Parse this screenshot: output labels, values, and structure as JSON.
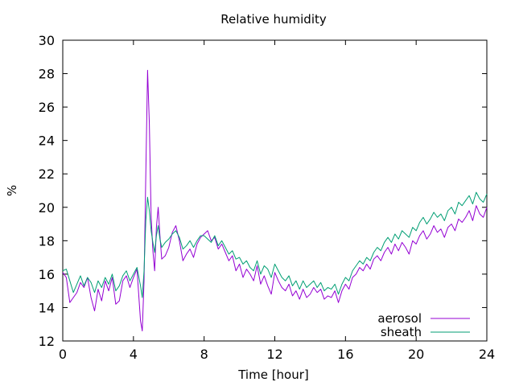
{
  "chart_data": {
    "type": "line",
    "title": "Relative humidity",
    "xlabel": "Time [hour]",
    "ylabel": "%",
    "xlim": [
      0,
      24
    ],
    "ylim": [
      12,
      30
    ],
    "xticks": [
      0,
      4,
      8,
      12,
      16,
      20,
      24
    ],
    "yticks": [
      12,
      14,
      16,
      18,
      20,
      22,
      24,
      26,
      28,
      30
    ],
    "grid": false,
    "legend_position": "bottom-right",
    "series": [
      {
        "name": "aerosol",
        "color": "#9400d3",
        "x": [
          0,
          0.2,
          0.4,
          0.6,
          0.8,
          1.0,
          1.2,
          1.4,
          1.6,
          1.8,
          2.0,
          2.2,
          2.4,
          2.6,
          2.8,
          3.0,
          3.2,
          3.4,
          3.6,
          3.8,
          4.0,
          4.2,
          4.4,
          4.5,
          4.6,
          4.7,
          4.8,
          4.9,
          5.0,
          5.1,
          5.2,
          5.3,
          5.4,
          5.5,
          5.6,
          5.8,
          6.0,
          6.2,
          6.4,
          6.6,
          6.8,
          7.0,
          7.2,
          7.4,
          7.6,
          7.8,
          8.0,
          8.2,
          8.4,
          8.6,
          8.8,
          9.0,
          9.2,
          9.4,
          9.6,
          9.8,
          10.0,
          10.2,
          10.4,
          10.6,
          10.8,
          11.0,
          11.2,
          11.4,
          11.6,
          11.8,
          12.0,
          12.2,
          12.4,
          12.6,
          12.8,
          13.0,
          13.2,
          13.4,
          13.6,
          13.8,
          14.0,
          14.2,
          14.4,
          14.6,
          14.8,
          15.0,
          15.2,
          15.4,
          15.6,
          15.8,
          16.0,
          16.2,
          16.4,
          16.6,
          16.8,
          17.0,
          17.2,
          17.4,
          17.6,
          17.8,
          18.0,
          18.2,
          18.4,
          18.6,
          18.8,
          19.0,
          19.2,
          19.4,
          19.6,
          19.8,
          20.0,
          20.2,
          20.4,
          20.6,
          20.8,
          21.0,
          21.2,
          21.4,
          21.6,
          21.8,
          22.0,
          22.2,
          22.4,
          22.6,
          22.8,
          23.0,
          23.2,
          23.4,
          23.6,
          23.8,
          24.0
        ],
        "y": [
          16.1,
          15.8,
          14.3,
          14.6,
          14.9,
          15.5,
          15.2,
          15.8,
          14.6,
          13.8,
          15.1,
          14.4,
          15.6,
          15.0,
          15.8,
          14.2,
          14.4,
          15.6,
          15.9,
          15.2,
          15.8,
          16.3,
          13.2,
          12.6,
          15.6,
          22.0,
          28.2,
          25.0,
          19.5,
          17.4,
          16.2,
          18.8,
          20.0,
          18.3,
          16.9,
          17.1,
          17.6,
          18.5,
          18.9,
          18.0,
          16.8,
          17.2,
          17.5,
          17.0,
          17.8,
          18.2,
          18.4,
          18.6,
          18.0,
          18.2,
          17.5,
          17.8,
          17.3,
          16.8,
          17.1,
          16.2,
          16.6,
          15.8,
          16.3,
          16.0,
          15.6,
          16.5,
          15.4,
          15.9,
          15.3,
          14.8,
          16.1,
          15.6,
          15.2,
          15.0,
          15.4,
          14.7,
          15.0,
          14.5,
          15.1,
          14.6,
          14.8,
          15.2,
          14.9,
          15.1,
          14.5,
          14.7,
          14.6,
          15.0,
          14.3,
          15.0,
          15.4,
          15.1,
          15.8,
          16.0,
          16.4,
          16.2,
          16.6,
          16.3,
          16.9,
          17.1,
          16.8,
          17.3,
          17.6,
          17.2,
          17.8,
          17.4,
          17.9,
          17.6,
          17.2,
          18.0,
          17.8,
          18.3,
          18.6,
          18.1,
          18.4,
          18.9,
          18.5,
          18.7,
          18.2,
          18.8,
          19.0,
          18.6,
          19.3,
          19.1,
          19.4,
          19.8,
          19.2,
          20.1,
          19.6,
          19.4,
          20.0
        ],
        "values_note": ""
      },
      {
        "name": "sheath",
        "color": "#009e73",
        "x": [
          0,
          0.2,
          0.4,
          0.6,
          0.8,
          1.0,
          1.2,
          1.4,
          1.6,
          1.8,
          2.0,
          2.2,
          2.4,
          2.6,
          2.8,
          3.0,
          3.2,
          3.4,
          3.6,
          3.8,
          4.0,
          4.2,
          4.4,
          4.5,
          4.6,
          4.7,
          4.8,
          4.9,
          5.0,
          5.1,
          5.2,
          5.3,
          5.4,
          5.5,
          5.6,
          5.8,
          6.0,
          6.2,
          6.4,
          6.6,
          6.8,
          7.0,
          7.2,
          7.4,
          7.6,
          7.8,
          8.0,
          8.2,
          8.4,
          8.6,
          8.8,
          9.0,
          9.2,
          9.4,
          9.6,
          9.8,
          10.0,
          10.2,
          10.4,
          10.6,
          10.8,
          11.0,
          11.2,
          11.4,
          11.6,
          11.8,
          12.0,
          12.2,
          12.4,
          12.6,
          12.8,
          13.0,
          13.2,
          13.4,
          13.6,
          13.8,
          14.0,
          14.2,
          14.4,
          14.6,
          14.8,
          15.0,
          15.2,
          15.4,
          15.6,
          15.8,
          16.0,
          16.2,
          16.4,
          16.6,
          16.8,
          17.0,
          17.2,
          17.4,
          17.6,
          17.8,
          18.0,
          18.2,
          18.4,
          18.6,
          18.8,
          19.0,
          19.2,
          19.4,
          19.6,
          19.8,
          20.0,
          20.2,
          20.4,
          20.6,
          20.8,
          21.0,
          21.2,
          21.4,
          21.6,
          21.8,
          22.0,
          22.2,
          22.4,
          22.6,
          22.8,
          23.0,
          23.2,
          23.4,
          23.6,
          23.8,
          24.0
        ],
        "y": [
          16.2,
          16.3,
          15.6,
          14.9,
          15.4,
          15.9,
          15.3,
          15.8,
          15.5,
          14.9,
          15.6,
          15.2,
          15.8,
          15.4,
          16.0,
          15.0,
          15.3,
          15.9,
          16.2,
          15.6,
          16.0,
          16.4,
          15.3,
          14.6,
          16.2,
          19.2,
          20.6,
          19.8,
          18.6,
          17.9,
          17.3,
          18.3,
          18.9,
          18.1,
          17.6,
          17.9,
          18.1,
          18.4,
          18.6,
          18.2,
          17.5,
          17.7,
          18.0,
          17.6,
          18.0,
          18.3,
          18.3,
          18.1,
          17.9,
          18.3,
          17.7,
          18.0,
          17.6,
          17.2,
          17.4,
          16.9,
          17.0,
          16.6,
          16.8,
          16.4,
          16.2,
          16.8,
          16.0,
          16.5,
          16.3,
          15.8,
          16.6,
          16.2,
          15.8,
          15.6,
          15.9,
          15.3,
          15.6,
          15.1,
          15.6,
          15.2,
          15.4,
          15.6,
          15.2,
          15.5,
          15.0,
          15.2,
          15.1,
          15.4,
          14.8,
          15.4,
          15.8,
          15.6,
          16.2,
          16.5,
          16.8,
          16.6,
          17.0,
          16.8,
          17.3,
          17.6,
          17.4,
          17.9,
          18.2,
          17.9,
          18.4,
          18.1,
          18.6,
          18.4,
          18.2,
          18.8,
          18.6,
          19.1,
          19.4,
          19.0,
          19.3,
          19.7,
          19.4,
          19.6,
          19.2,
          19.8,
          20.0,
          19.6,
          20.3,
          20.1,
          20.4,
          20.7,
          20.2,
          20.9,
          20.5,
          20.3,
          20.8
        ]
      }
    ]
  }
}
